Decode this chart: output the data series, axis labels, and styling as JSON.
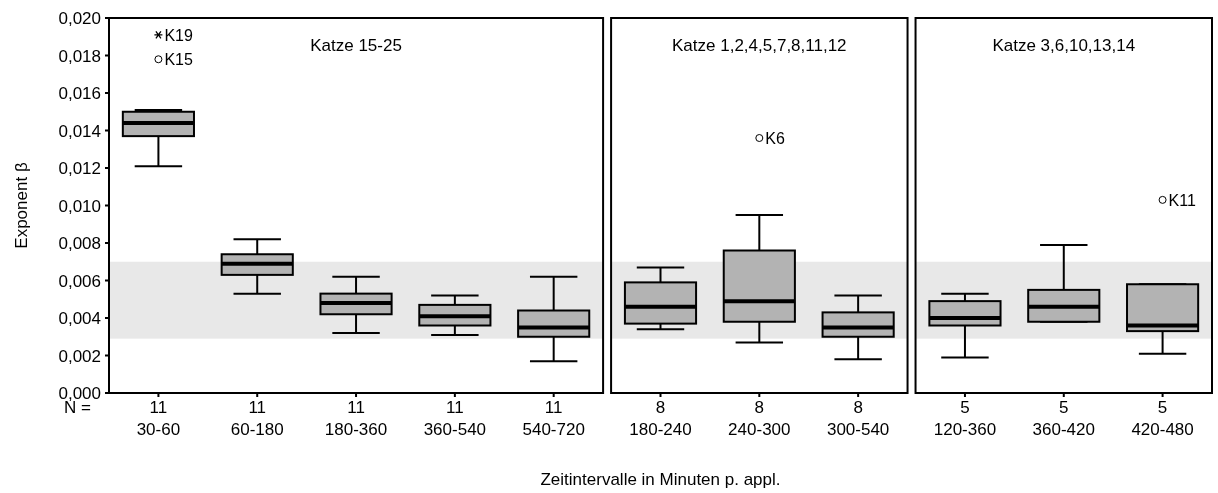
{
  "chart_data": [
    {
      "type": "box",
      "title": "Katze 15-25",
      "ylabel": "Exponent β",
      "xlabel": "Zeitintervalle in Minuten p. appl.",
      "color": "#b3b3b3",
      "categories": [
        "11\n30-60",
        "11\n60-180",
        "11\n180-360",
        "11\n360-540",
        "11\n540-720"
      ],
      "boxes": [
        {
          "low": 0.0121,
          "q1": 0.0137,
          "median": 0.0144,
          "q3": 0.015,
          "high": 0.0151,
          "outliers": [
            0.0191,
            0.0178
          ]
        },
        {
          "low": 0.0053,
          "q1": 0.0063,
          "median": 0.0069,
          "q3": 0.0074,
          "high": 0.0082
        },
        {
          "low": 0.0032,
          "q1": 0.0042,
          "median": 0.0048,
          "q3": 0.0053,
          "high": 0.0062
        },
        {
          "low": 0.0031,
          "q1": 0.0036,
          "median": 0.0041,
          "q3": 0.0047,
          "high": 0.0052
        },
        {
          "low": 0.0017,
          "q1": 0.003,
          "median": 0.0035,
          "q3": 0.0044,
          "high": 0.0062
        }
      ],
      "ylim": [
        0,
        0.02
      ],
      "yticks": [
        {
          "value": 0,
          "label": "0,000"
        },
        {
          "value": 0.002,
          "label": "0,002"
        },
        {
          "value": 0.004,
          "label": "0,004"
        },
        {
          "value": 0.006,
          "label": "0,006"
        },
        {
          "value": 0.008,
          "label": "0,008"
        },
        {
          "value": 0.01,
          "label": "0,010"
        },
        {
          "value": 0.012,
          "label": "0,012"
        },
        {
          "value": 0.014,
          "label": "0,014"
        },
        {
          "value": 0.016,
          "label": "0,016"
        },
        {
          "value": 0.018,
          "label": "0,018"
        },
        {
          "value": 0.02,
          "label": "0,020"
        }
      ],
      "bands": [
        {
          "axis": "y",
          "from": 0.0029,
          "to": 0.007,
          "color": "#e8e8e8"
        }
      ],
      "annotations": [
        "K19",
        "K15",
        "N ="
      ]
    },
    {
      "type": "box",
      "title": "Katze 1,2,4,5,7,8,11,12",
      "color": "#b3b3b3",
      "tick_labels": "x",
      "categories": [
        "8\n180-240",
        "8\n240-300",
        "8\n300-540"
      ],
      "boxes": [
        {
          "low": 0.0034,
          "q1": 0.0037,
          "median": 0.0046,
          "q3": 0.0059,
          "high": 0.0067
        },
        {
          "low": 0.0027,
          "q1": 0.0038,
          "median": 0.0049,
          "q3": 0.0076,
          "high": 0.0095,
          "outliers": [
            0.0136
          ]
        },
        {
          "low": 0.0018,
          "q1": 0.003,
          "median": 0.0035,
          "q3": 0.0043,
          "high": 0.0052
        }
      ],
      "ylim": [
        0,
        0.02
      ],
      "bands": [
        {
          "axis": "y",
          "from": 0.0029,
          "to": 0.007,
          "color": "#e8e8e8"
        }
      ],
      "annotations": [
        "K6"
      ]
    },
    {
      "type": "box",
      "title": "Katze 3,6,10,13,14",
      "color": "#b3b3b3",
      "tick_labels": "x",
      "categories": [
        "5\n120-360",
        "5\n360-420",
        "5\n420-480"
      ],
      "boxes": [
        {
          "low": 0.0019,
          "q1": 0.0036,
          "median": 0.004,
          "q3": 0.0049,
          "high": 0.0053
        },
        {
          "low": 0.0038,
          "q1": 0.0038,
          "median": 0.0046,
          "q3": 0.0055,
          "high": 0.0079
        },
        {
          "low": 0.0021,
          "q1": 0.0033,
          "median": 0.0036,
          "q3": 0.0058,
          "high": 0.0058,
          "outliers": [
            0.0103
          ]
        }
      ],
      "ylim": [
        0,
        0.02
      ],
      "bands": [
        {
          "axis": "y",
          "from": 0.0029,
          "to": 0.007,
          "color": "#e8e8e8"
        }
      ],
      "annotations": [
        "K11"
      ]
    }
  ]
}
